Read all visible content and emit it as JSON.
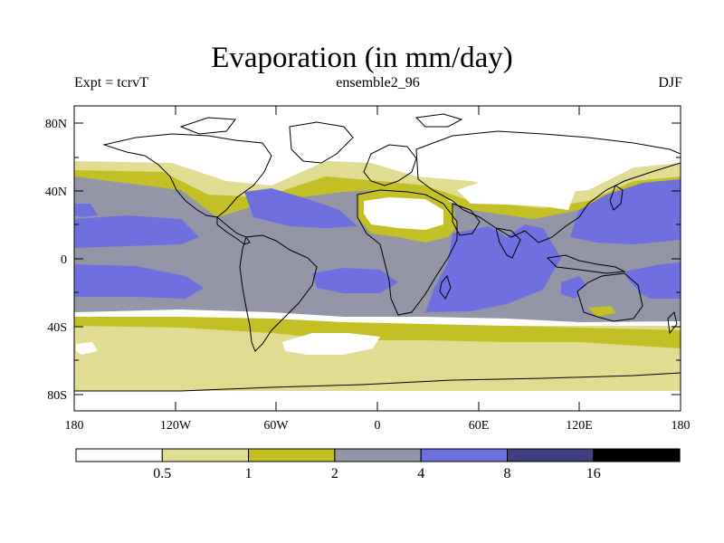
{
  "title": "Evaporation (in mm/day)",
  "subtitle_left": "Expt = tcrvT",
  "subtitle_center": "ensemble2_96",
  "subtitle_right": "DJF",
  "axes": {
    "lat_ticks": [
      "80N",
      "40N",
      "0",
      "40S",
      "80S"
    ],
    "lon_ticks": [
      "180",
      "120W",
      "60W",
      "0",
      "60E",
      "120E",
      "180"
    ]
  },
  "colorbar": {
    "boundaries": [
      "0.5",
      "1",
      "2",
      "4",
      "8",
      "16"
    ],
    "colors": [
      "#ffffff",
      "#e0dc92",
      "#c2c024",
      "#9496a8",
      "#6f6fe0",
      "#404080",
      "#000000"
    ]
  },
  "palette": {
    "land_fill": "#9496a8",
    "coast": "#000000"
  }
}
